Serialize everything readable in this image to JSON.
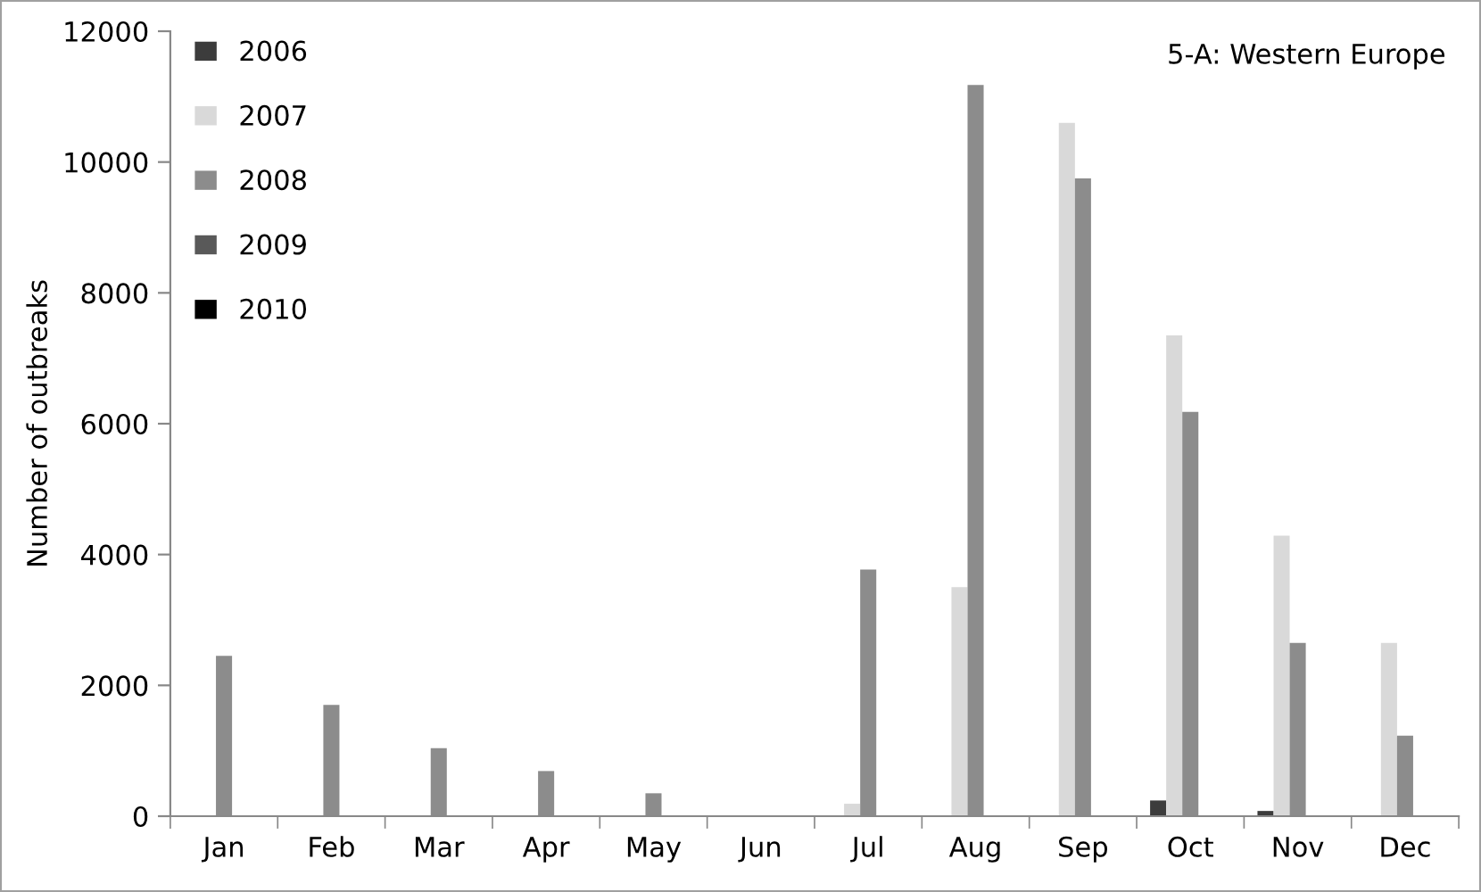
{
  "chart_data": {
    "type": "bar",
    "title": "5-A: Western Europe",
    "ylabel": "Number of outbreaks",
    "categories": [
      "Jan",
      "Feb",
      "Mar",
      "Apr",
      "May",
      "Jun",
      "Jul",
      "Aug",
      "Sep",
      "Oct",
      "Nov",
      "Dec"
    ],
    "series": [
      {
        "name": "2006",
        "color": "#3c3c3c",
        "values": [
          0,
          0,
          0,
          0,
          0,
          0,
          0,
          0,
          null,
          240,
          80,
          0
        ]
      },
      {
        "name": "2007",
        "color": "#d9d9d9",
        "values": [
          0,
          0,
          0,
          0,
          0,
          0,
          190,
          3500,
          10600,
          7350,
          4290,
          2650
        ]
      },
      {
        "name": "2008",
        "color": "#8c8c8c",
        "values": [
          2450,
          1700,
          1040,
          690,
          350,
          null,
          3770,
          11180,
          9750,
          6180,
          2650,
          1230
        ]
      },
      {
        "name": "2009",
        "color": "#595959",
        "values": [
          0,
          null,
          null,
          0,
          0,
          0,
          0,
          0,
          0,
          0,
          0,
          0
        ]
      },
      {
        "name": "2010",
        "color": "#000000",
        "values": [
          0,
          0,
          0,
          0,
          0,
          0,
          0,
          0,
          0,
          0,
          0,
          0
        ]
      }
    ],
    "ylim": [
      0,
      12000
    ],
    "yticks": [
      0,
      2000,
      4000,
      6000,
      8000,
      10000,
      12000
    ],
    "grid": false,
    "legend": "top left"
  }
}
